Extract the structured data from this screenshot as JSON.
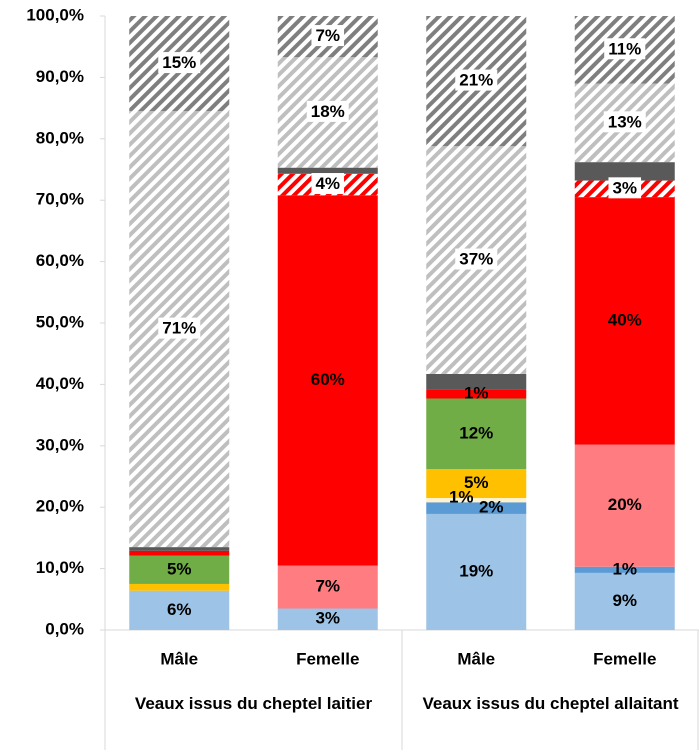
{
  "chart_data": {
    "type": "stacked_bar",
    "categories": [
      "Mâle",
      "Femelle",
      "Mâle",
      "Femelle"
    ],
    "groups": [
      {
        "label": "Veaux issus du cheptel laitier",
        "size": 2
      },
      {
        "label": "Veaux issus du cheptel allaitant",
        "size": 2
      }
    ],
    "ylim": [
      0,
      100
    ],
    "yticks": [
      {
        "value": 0,
        "label": "0,0%"
      },
      {
        "value": 10,
        "label": "10,0%"
      },
      {
        "value": 20,
        "label": "20,0%"
      },
      {
        "value": 30,
        "label": "30,0%"
      },
      {
        "value": 40,
        "label": "40,0%"
      },
      {
        "value": 50,
        "label": "50,0%"
      },
      {
        "value": 60,
        "label": "60,0%"
      },
      {
        "value": 70,
        "label": "70,0%"
      },
      {
        "value": 80,
        "label": "80,0%"
      },
      {
        "value": 90,
        "label": "90,0%"
      },
      {
        "value": 100,
        "label": "100,0%"
      }
    ],
    "series": [
      {
        "color": "#9dc3e6",
        "values": [
          6.4,
          3.5,
          18.9,
          9.3
        ],
        "value_labels": [
          "6%",
          "3%",
          "19%",
          "9%"
        ]
      },
      {
        "color": "#5b9bd5",
        "values": [
          0,
          0,
          1.9,
          1.0
        ],
        "value_labels": [
          null,
          null,
          "2%",
          "1%"
        ]
      },
      {
        "color": "#fff2cc",
        "values": [
          0,
          0,
          0.7,
          0
        ],
        "value_labels": [
          null,
          null,
          "1%",
          null
        ]
      },
      {
        "color": "#ffc000",
        "values": [
          1.1,
          0,
          4.7,
          0
        ],
        "value_labels": [
          null,
          null,
          "5%",
          null
        ]
      },
      {
        "color": "#70ad47",
        "values": [
          4.6,
          0,
          11.5,
          0
        ],
        "value_labels": [
          "5%",
          null,
          "12%",
          null
        ]
      },
      {
        "color": "#ff7c80",
        "values": [
          0,
          7.0,
          0,
          19.9
        ],
        "value_labels": [
          null,
          "7%",
          null,
          "20%"
        ]
      },
      {
        "color": "#ff0000",
        "values": [
          0.8,
          60.3,
          1.4,
          40.3
        ],
        "value_labels": [
          null,
          "60%",
          "1%",
          "40%"
        ],
        "label_color": "#ffffff"
      },
      {
        "color": "#ff0000",
        "hatch": true,
        "values": [
          0,
          3.5,
          0,
          2.7
        ],
        "value_labels": [
          null,
          "4%",
          null,
          "3%"
        ]
      },
      {
        "color": "#595959",
        "values": [
          0.6,
          1.0,
          2.6,
          3.0
        ],
        "value_labels": [
          null,
          null,
          null,
          null
        ]
      },
      {
        "color": "#bfbfbf",
        "hatch": true,
        "values": [
          71.0,
          18.0,
          37.1,
          12.8
        ],
        "value_labels": [
          "71%",
          "18%",
          "37%",
          "13%"
        ]
      },
      {
        "color": "#7f7f7f",
        "hatch": true,
        "values": [
          15.5,
          6.7,
          21.2,
          11.0
        ],
        "value_labels": [
          "15%",
          "7%",
          "21%",
          "11%"
        ]
      }
    ]
  }
}
